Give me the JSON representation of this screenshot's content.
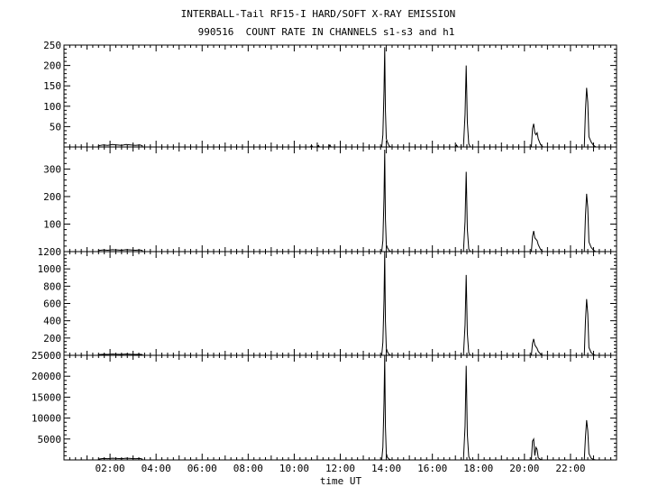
{
  "title": "INTERBALL-Tail RF15-I HARD/SOFT X-RAY EMISSION",
  "subtitle": "990516  COUNT RATE IN CHANNELS s1-s3 and h1",
  "xlabel": "time UT",
  "chart_data": {
    "type": "line",
    "title": "INTERBALL-Tail RF15-I HARD/SOFT X-RAY EMISSION",
    "subtitle": "990516  COUNT RATE IN CHANNELS s1-s3 and h1",
    "xlabel": "time UT",
    "xlim": [
      0,
      24
    ],
    "x_ticks": [
      2,
      4,
      6,
      8,
      10,
      12,
      14,
      16,
      18,
      20,
      22
    ],
    "x_tick_labels": [
      "02:00",
      "04:00",
      "06:00",
      "08:00",
      "10:00",
      "12:00",
      "14:00",
      "16:00",
      "18:00",
      "20:00",
      "22:00"
    ],
    "grid": false,
    "panels": [
      {
        "channel": "s1",
        "ylim": [
          0,
          250
        ],
        "y_ticks": [
          50,
          100,
          150,
          200,
          250
        ],
        "points": [
          [
            1.5,
            0
          ],
          [
            1.5,
            3
          ],
          [
            1.7,
            5
          ],
          [
            1.9,
            4
          ],
          [
            2.1,
            6
          ],
          [
            2.3,
            5
          ],
          [
            2.5,
            4
          ],
          [
            2.7,
            6
          ],
          [
            2.9,
            5
          ],
          [
            3.1,
            4
          ],
          [
            3.3,
            5
          ],
          [
            3.4,
            3
          ],
          [
            3.4,
            0
          ],
          [
            10.7,
            0
          ],
          [
            10.75,
            4
          ],
          [
            10.8,
            0
          ],
          [
            11.0,
            0
          ],
          [
            11.05,
            4
          ],
          [
            11.1,
            0
          ],
          [
            11.5,
            0
          ],
          [
            11.55,
            5
          ],
          [
            11.6,
            0
          ],
          [
            13.8,
            0
          ],
          [
            13.85,
            30
          ],
          [
            13.9,
            140
          ],
          [
            13.93,
            245
          ],
          [
            13.96,
            90
          ],
          [
            14.0,
            20
          ],
          [
            14.05,
            12
          ],
          [
            14.12,
            3
          ],
          [
            14.2,
            0
          ],
          [
            17.0,
            0
          ],
          [
            17.05,
            5
          ],
          [
            17.1,
            0
          ],
          [
            17.35,
            0
          ],
          [
            17.42,
            80
          ],
          [
            17.47,
            200
          ],
          [
            17.52,
            60
          ],
          [
            17.58,
            8
          ],
          [
            17.65,
            0
          ],
          [
            20.3,
            0
          ],
          [
            20.35,
            45
          ],
          [
            20.4,
            57
          ],
          [
            20.45,
            35
          ],
          [
            20.5,
            30
          ],
          [
            20.55,
            35
          ],
          [
            20.6,
            20
          ],
          [
            20.7,
            6
          ],
          [
            20.8,
            0
          ],
          [
            22.6,
            0
          ],
          [
            22.65,
            90
          ],
          [
            22.7,
            145
          ],
          [
            22.75,
            110
          ],
          [
            22.8,
            25
          ],
          [
            22.9,
            12
          ],
          [
            23.0,
            4
          ],
          [
            23.1,
            0
          ]
        ]
      },
      {
        "channel": "s2",
        "ylim": [
          0,
          380
        ],
        "y_ticks": [
          100,
          200,
          300
        ],
        "points": [
          [
            1.5,
            0
          ],
          [
            1.5,
            4
          ],
          [
            1.7,
            6
          ],
          [
            1.9,
            5
          ],
          [
            2.1,
            7
          ],
          [
            2.3,
            6
          ],
          [
            2.5,
            5
          ],
          [
            2.7,
            7
          ],
          [
            2.9,
            6
          ],
          [
            3.1,
            5
          ],
          [
            3.3,
            6
          ],
          [
            3.4,
            4
          ],
          [
            3.4,
            0
          ],
          [
            13.8,
            0
          ],
          [
            13.85,
            40
          ],
          [
            13.9,
            200
          ],
          [
            13.93,
            370
          ],
          [
            13.96,
            120
          ],
          [
            14.0,
            25
          ],
          [
            14.05,
            14
          ],
          [
            14.12,
            4
          ],
          [
            14.2,
            0
          ],
          [
            17.35,
            0
          ],
          [
            17.42,
            110
          ],
          [
            17.47,
            290
          ],
          [
            17.52,
            80
          ],
          [
            17.58,
            10
          ],
          [
            17.65,
            0
          ],
          [
            20.3,
            0
          ],
          [
            20.35,
            55
          ],
          [
            20.4,
            75
          ],
          [
            20.45,
            50
          ],
          [
            20.5,
            45
          ],
          [
            20.55,
            40
          ],
          [
            20.6,
            25
          ],
          [
            20.7,
            8
          ],
          [
            20.8,
            0
          ],
          [
            22.6,
            0
          ],
          [
            22.65,
            130
          ],
          [
            22.7,
            210
          ],
          [
            22.75,
            160
          ],
          [
            22.8,
            35
          ],
          [
            22.9,
            15
          ],
          [
            23.0,
            5
          ],
          [
            23.1,
            0
          ]
        ]
      },
      {
        "channel": "s3",
        "ylim": [
          0,
          1200
        ],
        "y_ticks": [
          200,
          400,
          600,
          800,
          1000,
          1200
        ],
        "points": [
          [
            1.5,
            0
          ],
          [
            1.5,
            8
          ],
          [
            1.7,
            12
          ],
          [
            1.9,
            10
          ],
          [
            2.1,
            14
          ],
          [
            2.3,
            12
          ],
          [
            2.5,
            10
          ],
          [
            2.7,
            14
          ],
          [
            2.9,
            12
          ],
          [
            3.1,
            10
          ],
          [
            3.3,
            12
          ],
          [
            3.4,
            8
          ],
          [
            3.4,
            0
          ],
          [
            13.8,
            0
          ],
          [
            13.85,
            150
          ],
          [
            13.9,
            650
          ],
          [
            13.93,
            1200
          ],
          [
            13.96,
            400
          ],
          [
            14.0,
            80
          ],
          [
            14.05,
            40
          ],
          [
            14.12,
            10
          ],
          [
            14.2,
            0
          ],
          [
            17.35,
            0
          ],
          [
            17.42,
            350
          ],
          [
            17.47,
            930
          ],
          [
            17.52,
            250
          ],
          [
            17.58,
            30
          ],
          [
            17.65,
            0
          ],
          [
            20.3,
            0
          ],
          [
            20.35,
            140
          ],
          [
            20.4,
            190
          ],
          [
            20.45,
            120
          ],
          [
            20.5,
            100
          ],
          [
            20.55,
            80
          ],
          [
            20.6,
            45
          ],
          [
            20.7,
            15
          ],
          [
            20.8,
            0
          ],
          [
            22.6,
            0
          ],
          [
            22.65,
            400
          ],
          [
            22.7,
            650
          ],
          [
            22.75,
            480
          ],
          [
            22.8,
            90
          ],
          [
            22.9,
            30
          ],
          [
            23.0,
            8
          ],
          [
            23.1,
            0
          ]
        ]
      },
      {
        "channel": "h1",
        "ylim": [
          0,
          25000
        ],
        "y_ticks": [
          5000,
          10000,
          15000,
          20000,
          25000
        ],
        "points": [
          [
            1.5,
            0
          ],
          [
            1.5,
            200
          ],
          [
            1.7,
            350
          ],
          [
            1.9,
            300
          ],
          [
            2.1,
            400
          ],
          [
            2.3,
            350
          ],
          [
            2.5,
            300
          ],
          [
            2.7,
            400
          ],
          [
            2.9,
            350
          ],
          [
            3.1,
            300
          ],
          [
            3.3,
            350
          ],
          [
            3.4,
            200
          ],
          [
            3.4,
            0
          ],
          [
            13.8,
            0
          ],
          [
            13.85,
            3000
          ],
          [
            13.9,
            14000
          ],
          [
            13.93,
            25500
          ],
          [
            13.96,
            8000
          ],
          [
            14.0,
            1500
          ],
          [
            14.05,
            600
          ],
          [
            14.12,
            200
          ],
          [
            14.2,
            0
          ],
          [
            17.35,
            0
          ],
          [
            17.42,
            8000
          ],
          [
            17.47,
            22500
          ],
          [
            17.52,
            6000
          ],
          [
            17.58,
            800
          ],
          [
            17.65,
            0
          ],
          [
            20.3,
            0
          ],
          [
            20.35,
            4500
          ],
          [
            20.4,
            5000
          ],
          [
            20.45,
            1000
          ],
          [
            20.5,
            3000
          ],
          [
            20.55,
            2500
          ],
          [
            20.6,
            500
          ],
          [
            20.7,
            100
          ],
          [
            20.8,
            0
          ],
          [
            22.6,
            0
          ],
          [
            22.65,
            5500
          ],
          [
            22.7,
            9500
          ],
          [
            22.75,
            7000
          ],
          [
            22.8,
            1500
          ],
          [
            22.9,
            400
          ],
          [
            23.0,
            100
          ],
          [
            23.1,
            0
          ]
        ]
      }
    ]
  }
}
